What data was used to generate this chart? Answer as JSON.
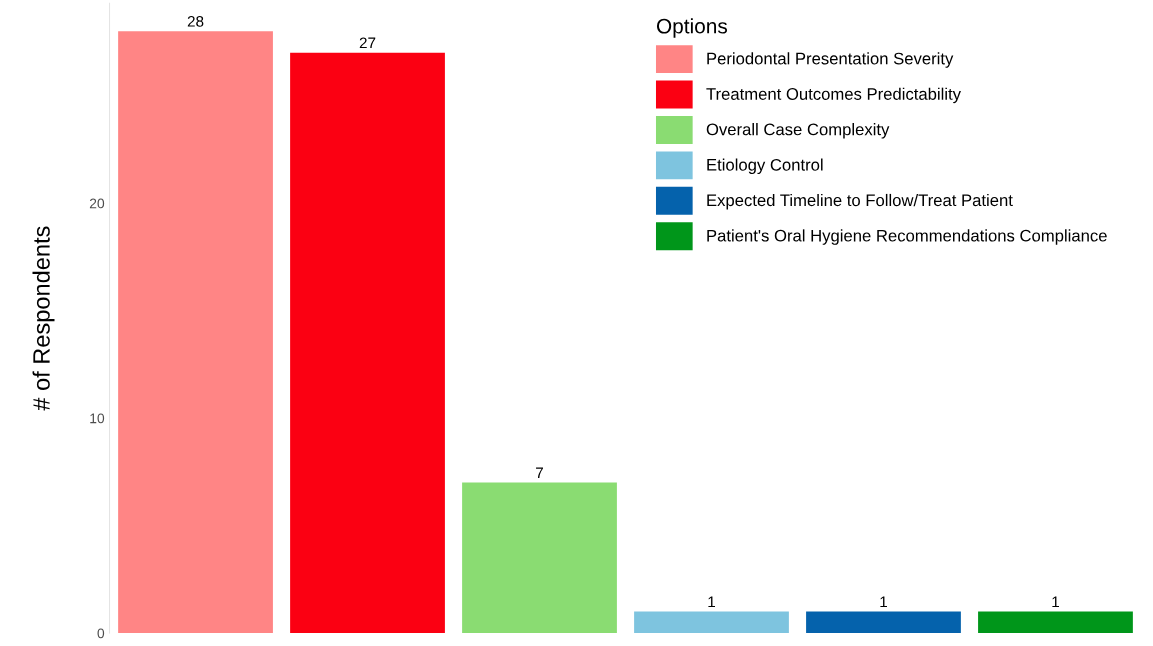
{
  "chart_data": {
    "type": "bar",
    "ylabel": "# of Respondents",
    "legend_title": "Options",
    "categories": [
      null,
      null,
      null,
      null,
      null,
      null
    ],
    "stacked": true,
    "series": [
      {
        "name": "Periodontal Presentation Severity",
        "color": "#ff8585",
        "values": [
          28,
          null,
          null,
          null,
          null,
          null
        ]
      },
      {
        "name": "Treatment Outcomes Predictability",
        "color": "#fb0012",
        "values": [
          null,
          27,
          null,
          null,
          null,
          null
        ]
      },
      {
        "name": "Overall Case Complexity",
        "color": "#8adc72",
        "values": [
          null,
          null,
          7,
          null,
          null,
          null
        ]
      },
      {
        "name": "Etiology Control",
        "color": "#7ec4df",
        "values": [
          null,
          null,
          null,
          1,
          null,
          null
        ]
      },
      {
        "name": "Expected Timeline to Follow/Treat Patient",
        "color": "#0562ac",
        "values": [
          null,
          null,
          null,
          null,
          1,
          null
        ]
      },
      {
        "name": "Patient's Oral Hygiene Recommendations Compliance",
        "color": "#00961a",
        "values": [
          null,
          null,
          null,
          null,
          null,
          1
        ]
      }
    ],
    "ylim": [
      0,
      29.3
    ],
    "yticks": [
      0,
      10,
      20
    ],
    "data_labels": true,
    "grid": false,
    "legend": "top right"
  }
}
